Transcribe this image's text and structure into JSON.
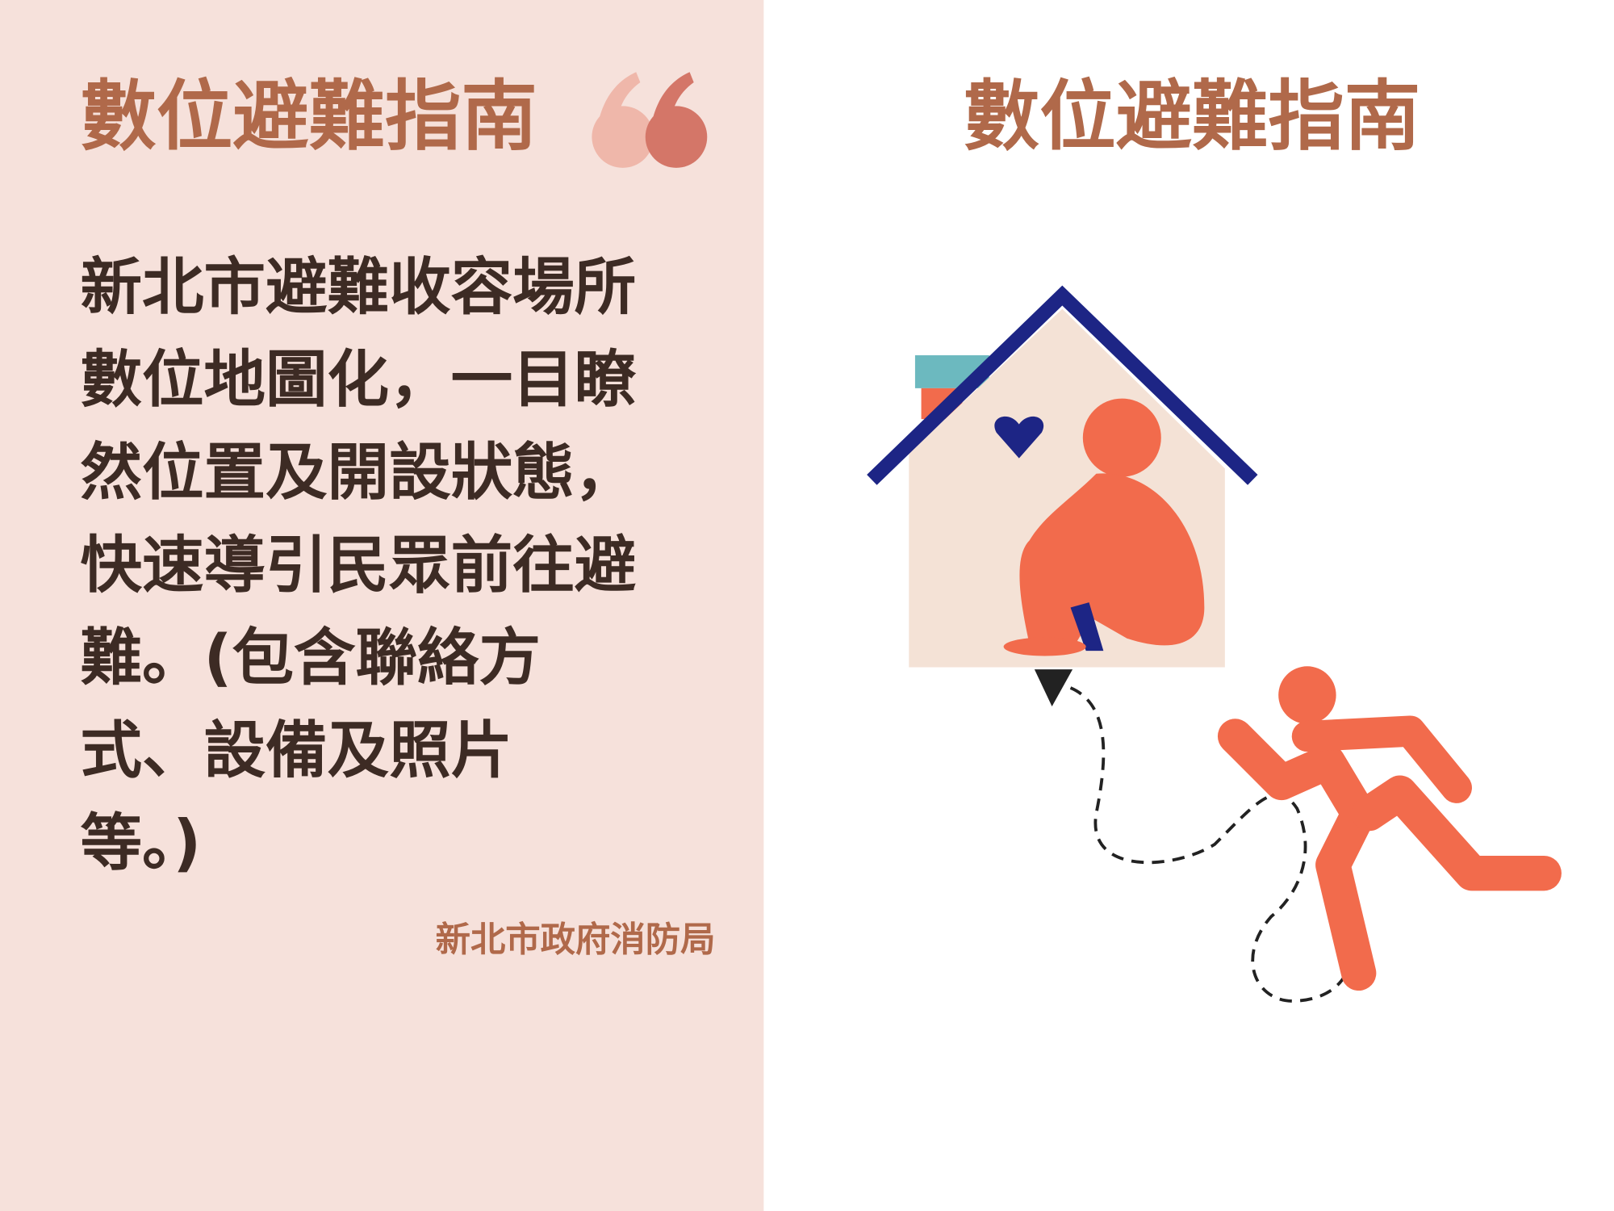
{
  "header": {
    "title": "數位避難指南"
  },
  "body": {
    "lines": [
      "新北市避難收容場所",
      "數位地圖化，一目瞭",
      "然位置及開設狀態，",
      "快速導引民眾前往避",
      "難。(包含聯絡方",
      "式、設備及照片",
      "等。)"
    ],
    "source": "新北市政府消防局"
  },
  "illustration": {
    "title": "數位避難指南"
  }
}
